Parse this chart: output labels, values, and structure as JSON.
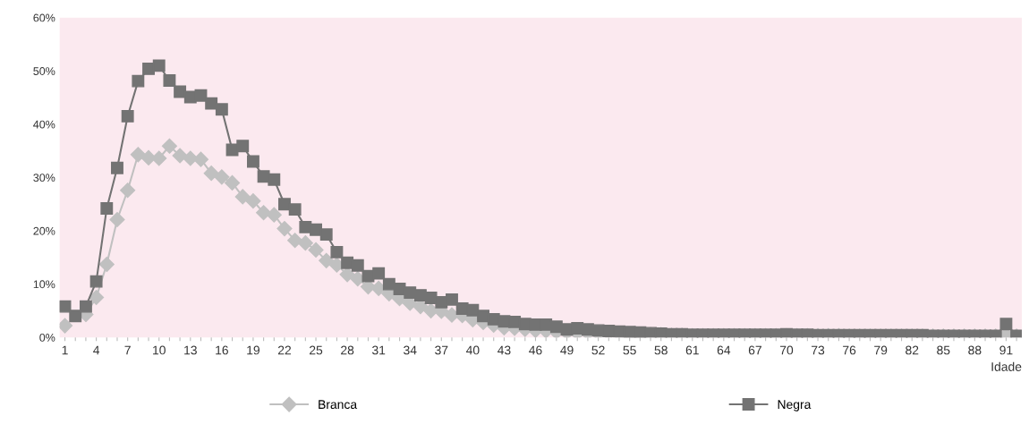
{
  "chart_data": {
    "type": "line",
    "xlabel": "Idade",
    "categories": [
      "1",
      null,
      null,
      "4",
      null,
      null,
      "7",
      null,
      null,
      "10",
      null,
      null,
      "13",
      null,
      null,
      "16",
      null,
      null,
      "19",
      null,
      null,
      "22",
      null,
      null,
      "25",
      null,
      null,
      "28",
      null,
      null,
      "31",
      null,
      null,
      "34",
      null,
      null,
      "37",
      null,
      null,
      "40",
      null,
      null,
      "43",
      null,
      null,
      "46",
      null,
      null,
      "49",
      null,
      null,
      "52",
      null,
      null,
      "55",
      null,
      null,
      "58",
      null,
      null,
      "61",
      null,
      null,
      "64",
      null,
      null,
      "67",
      null,
      null,
      "70",
      null,
      null,
      "73",
      null,
      null,
      "76",
      null,
      null,
      "79",
      null,
      null,
      "82",
      null,
      null,
      "85",
      null,
      null,
      "88",
      null,
      null,
      "91",
      null
    ],
    "series": [
      {
        "name": "Branca",
        "color": "#c0c0c0",
        "marker": "diamond",
        "values": [
          2.2,
          null,
          4.3,
          7.5,
          13.7,
          22.1,
          27.6,
          34.3,
          33.7,
          33.6,
          35.9,
          34.1,
          33.6,
          33.4,
          30.8,
          30.1,
          29.0,
          26.4,
          25.6,
          23.4,
          23.0,
          20.4,
          18.2,
          17.7,
          16.4,
          14.4,
          13.6,
          11.8,
          11.0,
          9.5,
          9.2,
          8.2,
          7.3,
          6.4,
          5.8,
          5.0,
          4.9,
          4.2,
          4.1,
          3.3,
          2.8,
          2.3,
          1.8,
          1.7,
          1.5,
          1.3,
          1.2,
          1.0,
          0.9,
          0.8,
          0.8,
          0.7,
          0.7,
          0.6,
          0.6,
          0.5,
          0.5,
          0.5,
          0.4,
          0.4,
          0.3,
          0.3,
          0.3,
          0.3,
          0.3,
          0.3,
          0.3,
          0.3,
          0.3,
          0.3,
          0.3,
          0.3,
          0.3,
          0.3,
          0.3,
          0.2,
          0.2,
          0.2,
          0.2,
          0.2,
          0.2,
          0.2,
          0.2,
          0.2,
          0.2,
          0.2,
          0.2,
          0.2,
          0.2,
          0.2,
          0.5,
          0.2
        ]
      },
      {
        "name": "Negra",
        "color": "#737373",
        "marker": "square",
        "values": [
          5.8,
          4.0,
          5.8,
          10.5,
          24.2,
          31.8,
          41.5,
          48.1,
          50.4,
          51.0,
          48.2,
          46.1,
          45.1,
          45.4,
          43.9,
          42.8,
          35.2,
          35.9,
          33.0,
          30.2,
          29.6,
          25.0,
          24.0,
          20.7,
          20.2,
          19.3,
          16.0,
          14.0,
          13.5,
          11.5,
          12.0,
          10.0,
          9.1,
          8.4,
          7.9,
          7.4,
          6.6,
          7.1,
          5.4,
          5.1,
          4.0,
          3.4,
          3.0,
          2.9,
          2.5,
          2.4,
          2.4,
          2.0,
          1.5,
          1.7,
          1.5,
          1.3,
          1.2,
          1.1,
          1.0,
          0.9,
          0.8,
          0.7,
          0.6,
          0.6,
          0.5,
          0.5,
          0.5,
          0.5,
          0.5,
          0.5,
          0.5,
          0.5,
          0.5,
          0.6,
          0.5,
          0.5,
          0.4,
          0.4,
          0.4,
          0.4,
          0.4,
          0.4,
          0.4,
          0.4,
          0.4,
          0.4,
          0.4,
          0.3,
          0.3,
          0.3,
          0.3,
          0.3,
          0.3,
          0.3,
          2.5,
          0.3
        ]
      }
    ],
    "ylim": [
      0,
      60
    ],
    "yticks": [
      {
        "value": 0,
        "label": "0%"
      },
      {
        "value": 10,
        "label": "10%"
      },
      {
        "value": 20,
        "label": "20%"
      },
      {
        "value": 30,
        "label": "30%"
      },
      {
        "value": 40,
        "label": "40%"
      },
      {
        "value": 50,
        "label": "50%"
      },
      {
        "value": 60,
        "label": "60%"
      }
    ],
    "grid": false,
    "legend": "bottom",
    "line_style": "solid"
  }
}
